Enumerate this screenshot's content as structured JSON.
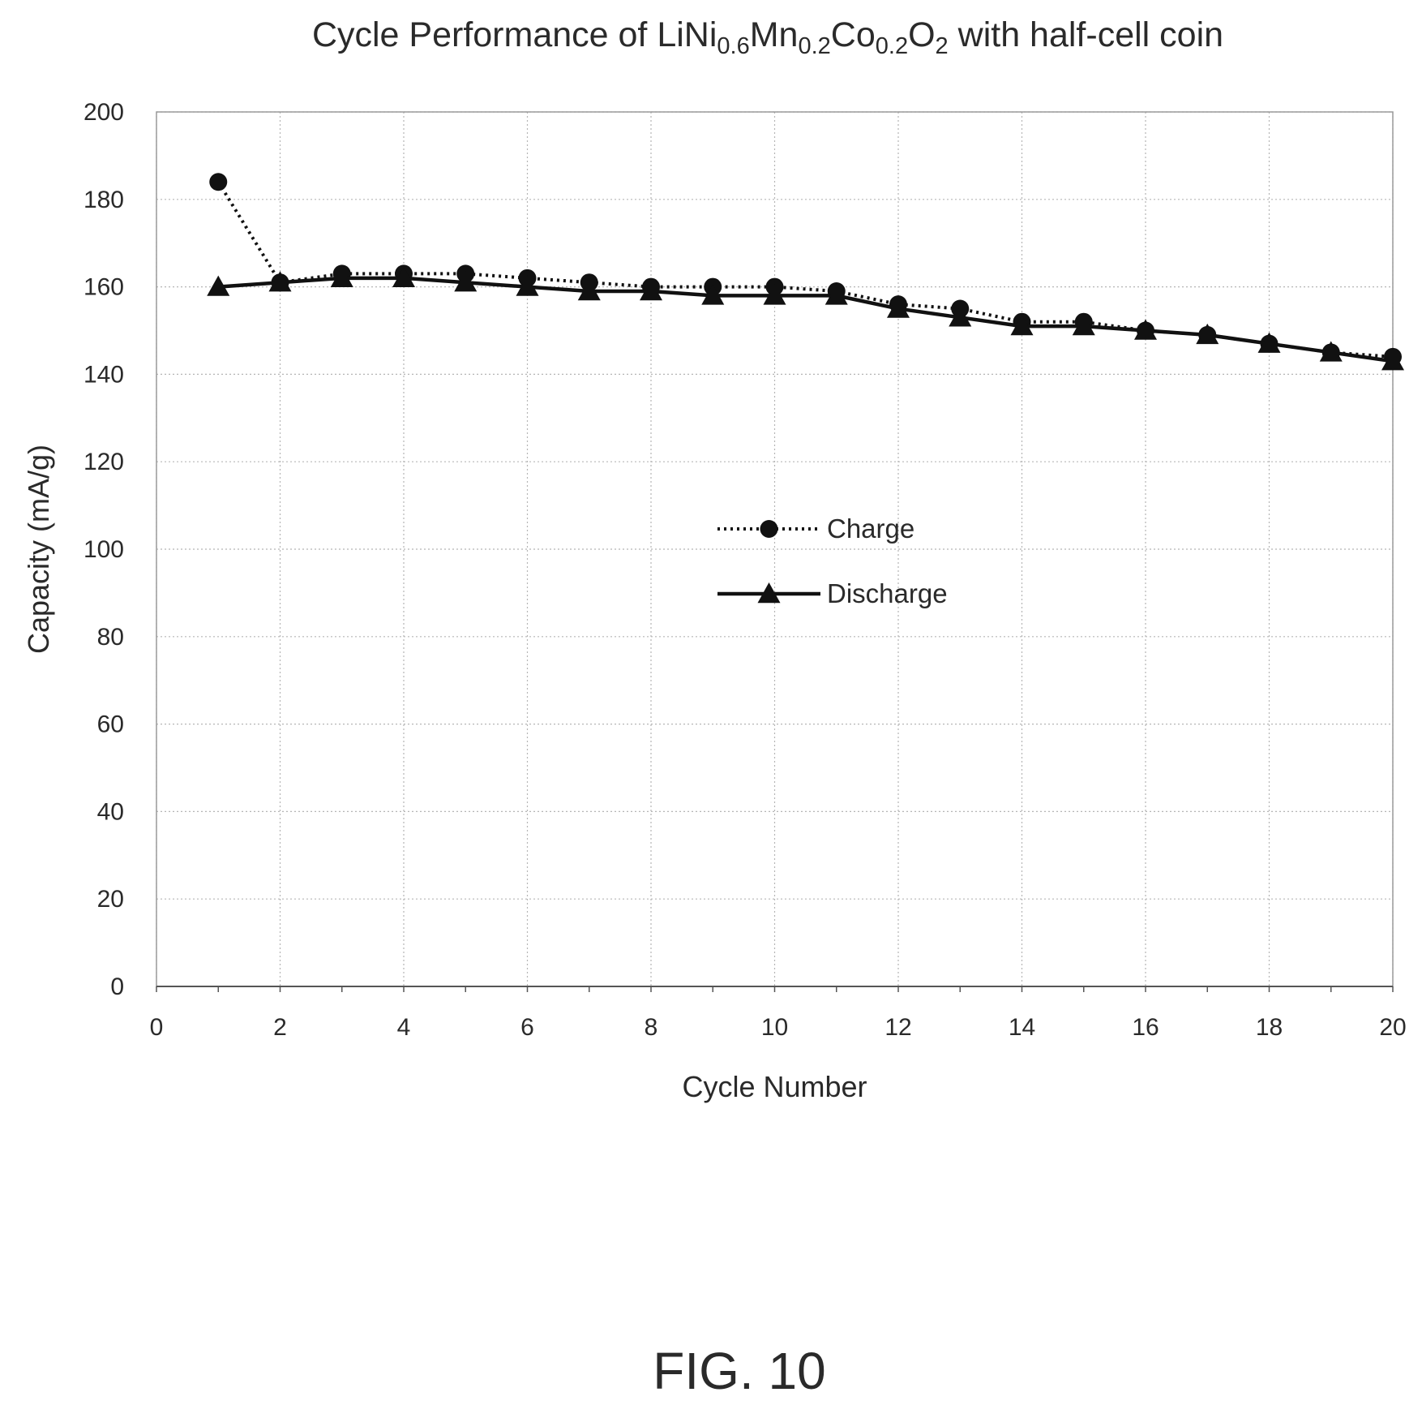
{
  "figure_label": "FIG. 10",
  "chart_data": {
    "type": "line",
    "title_parts": [
      {
        "text": "Cycle Performance of LiNi",
        "sub": false
      },
      {
        "text": "0.6",
        "sub": true
      },
      {
        "text": "Mn",
        "sub": false
      },
      {
        "text": "0.2",
        "sub": true
      },
      {
        "text": "Co",
        "sub": false
      },
      {
        "text": "0.2",
        "sub": true
      },
      {
        "text": "O",
        "sub": false
      },
      {
        "text": "2",
        "sub": true
      },
      {
        "text": " with half-cell coin",
        "sub": false
      }
    ],
    "xlabel": "Cycle Number",
    "ylabel": "Capacity (mA/g)",
    "xlim": [
      0,
      20
    ],
    "ylim": [
      0,
      200
    ],
    "xticks": [
      0,
      2,
      4,
      6,
      8,
      10,
      12,
      14,
      16,
      18,
      20
    ],
    "yticks": [
      0,
      20,
      40,
      60,
      80,
      100,
      120,
      140,
      160,
      180,
      200
    ],
    "grid": true,
    "legend_position": "center",
    "x": [
      1,
      2,
      3,
      4,
      5,
      6,
      7,
      8,
      9,
      10,
      11,
      12,
      13,
      14,
      15,
      16,
      17,
      18,
      19,
      20
    ],
    "series": [
      {
        "name": "Charge",
        "style": "dotted",
        "marker": "circle",
        "color": "#111111",
        "values": [
          184,
          161,
          163,
          163,
          163,
          162,
          161,
          160,
          160,
          160,
          159,
          156,
          155,
          152,
          152,
          150,
          149,
          147,
          145,
          144
        ]
      },
      {
        "name": "Discharge",
        "style": "solid",
        "marker": "triangle",
        "color": "#111111",
        "values": [
          160,
          161,
          162,
          162,
          161,
          160,
          159,
          159,
          158,
          158,
          158,
          155,
          153,
          151,
          151,
          150,
          149,
          147,
          145,
          143
        ]
      }
    ]
  }
}
